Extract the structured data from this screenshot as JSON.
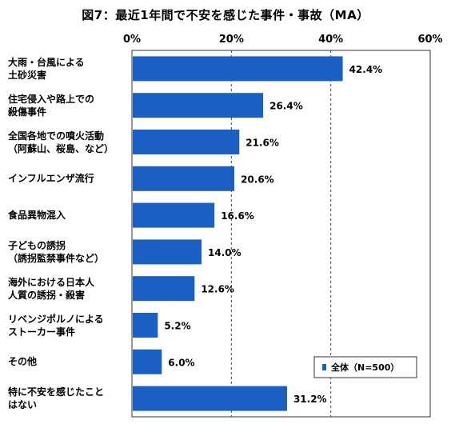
{
  "chart_data": {
    "type": "bar",
    "orientation": "horizontal",
    "title": "図7：最近1年間で不安を感じた事件・事故（MA）",
    "categories": [
      [
        "大雨・台風による",
        "土砂災害"
      ],
      [
        "住宅侵入や路上での",
        "殺傷事件"
      ],
      [
        "全国各地での噴火活動",
        "（阿蘇山、桜島、など）"
      ],
      [
        "インフルエンザ流行"
      ],
      [
        "食品異物混入"
      ],
      [
        "子どもの誘拐",
        "（誘拐監禁事件など）"
      ],
      [
        "海外における日本人",
        "人質の誘拐・殺害"
      ],
      [
        "リベンジポルノによる",
        "ストーカー事件"
      ],
      [
        "その他"
      ],
      [
        "特に不安を感じたこと",
        "はない"
      ]
    ],
    "series": [
      {
        "name": "全体（N=500）",
        "values": [
          42.4,
          26.4,
          21.6,
          20.6,
          16.6,
          14.0,
          12.6,
          5.2,
          6.0,
          31.2
        ],
        "color": "#1a5fc4"
      }
    ],
    "data_labels": [
      "42.4%",
      "26.4%",
      "21.6%",
      "20.6%",
      "16.6%",
      "14.0%",
      "12.6%",
      "5.2%",
      "6.0%",
      "31.2%"
    ],
    "xlim": [
      0,
      60
    ],
    "x_ticks": [
      0,
      20,
      40,
      60
    ],
    "x_tick_labels": [
      "0%",
      "20%",
      "40%",
      "60%"
    ],
    "xlabel": "",
    "ylabel": "",
    "grid": "vertical dashed",
    "legend_position": "bottom-right inside plot",
    "axis_position": "top"
  }
}
